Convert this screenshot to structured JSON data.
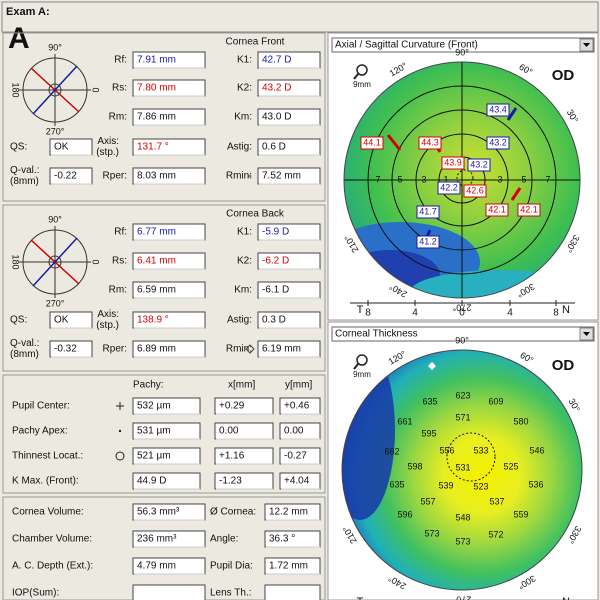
{
  "header": {
    "title": "Exam A:",
    "panel_letter": "A"
  },
  "cornea_front": {
    "title": "Cornea Front",
    "diagram": [
      "90°",
      "0",
      "180",
      "270°"
    ],
    "rows": [
      [
        {
          "label": [
            "Rf:"
          ],
          "value": "7.91 mm",
          "color": "blue"
        },
        {
          "label": [
            "K1:"
          ],
          "value": "42.7 D",
          "color": "blue"
        }
      ],
      [
        {
          "label": [
            "Rs:"
          ],
          "value": "7.80 mm",
          "color": "red"
        },
        {
          "label": [
            "K2:"
          ],
          "value": "43.2 D",
          "color": "red"
        }
      ],
      [
        {
          "label": [
            "Rm:"
          ],
          "value": "7.86 mm"
        },
        {
          "label": [
            "Km:"
          ],
          "value": "43.0 D"
        }
      ],
      [
        {
          "label": [
            "QS:"
          ],
          "value": "OK"
        },
        {
          "label": [
            "Axis:",
            "(stp.)"
          ],
          "value": "131.7 °",
          "color": "red"
        },
        {
          "label": [
            "Astig:"
          ],
          "value": "0.6 D"
        }
      ],
      [
        {
          "label": [
            "Q-val.:",
            "(8mm)"
          ],
          "value": "-0.22"
        },
        {
          "label": [
            "Rper:"
          ],
          "value": "8.03 mm"
        },
        {
          "label": [
            "Rmin:"
          ],
          "value": "7.52 mm"
        }
      ]
    ]
  },
  "cornea_back": {
    "title": "Cornea Back",
    "diagram": [
      "90°",
      "0",
      "180",
      "270°"
    ],
    "rows": [
      [
        {
          "label": [
            "Rf:"
          ],
          "value": "6.77 mm",
          "color": "blue"
        },
        {
          "label": [
            "K1:"
          ],
          "value": "-5.9 D",
          "color": "blue"
        }
      ],
      [
        {
          "label": [
            "Rs:"
          ],
          "value": "6.41 mm",
          "color": "red"
        },
        {
          "label": [
            "K2:"
          ],
          "value": "-6.2 D",
          "color": "red"
        }
      ],
      [
        {
          "label": [
            "Rm:"
          ],
          "value": "6.59 mm"
        },
        {
          "label": [
            "Km:"
          ],
          "value": "-6.1 D"
        }
      ],
      [
        {
          "label": [
            "QS:"
          ],
          "value": "OK"
        },
        {
          "label": [
            "Axis:",
            "(stp.)"
          ],
          "value": "138.9 °",
          "color": "red"
        },
        {
          "label": [
            "Astig:"
          ],
          "value": "0.3 D"
        }
      ],
      [
        {
          "label": [
            "Q-val.:",
            "(8mm)"
          ],
          "value": "-0.32"
        },
        {
          "label": [
            "Rper:"
          ],
          "value": "6.89 mm"
        },
        {
          "label": [
            "Rmin:"
          ],
          "value": "6.19 mm"
        }
      ]
    ]
  },
  "pachy": {
    "headers": [
      "Pachy:",
      "x[mm]",
      "y[mm]"
    ],
    "rows": [
      {
        "label": "Pupil Center:",
        "values": [
          "532 µm",
          "+0.29",
          "+0.46"
        ]
      },
      {
        "label": "Pachy Apex:",
        "values": [
          "531 µm",
          "0.00",
          "0.00"
        ]
      },
      {
        "label": "Thinnest Locat.:",
        "values": [
          "521 µm",
          "+1.16",
          "-0.27"
        ]
      },
      {
        "label": "K Max. (Front):",
        "values": [
          "44.9 D",
          "-1.23",
          "+4.04"
        ]
      }
    ]
  },
  "volumes": {
    "rows": [
      [
        {
          "label": "Cornea Volume:",
          "value": "56.3 mm³"
        },
        {
          "label": "Ø Cornea:",
          "value": "12.2 mm"
        }
      ],
      [
        {
          "label": "Chamber Volume:",
          "value": "236 mm³"
        },
        {
          "label": "Angle:",
          "value": "36.3 °"
        }
      ],
      [
        {
          "label": "A. C. Depth (Ext.):",
          "value": "4.79 mm"
        },
        {
          "label": "Pupil Dia:",
          "value": "1.72 mm"
        }
      ],
      [
        {
          "label": "IOP(Sum):"
        },
        {
          "label": "Lens Th.:"
        }
      ]
    ]
  },
  "curvature_map": {
    "selector": "Axial / Sagittal Curvature (Front)",
    "eye": "OD",
    "scale": "9mm",
    "angles": [
      "90°",
      "60°",
      "30°",
      "120°",
      "210°",
      "240°",
      "270°",
      "300°",
      "330°"
    ],
    "ring_labels": [
      7,
      5,
      3,
      1,
      3,
      5,
      7
    ],
    "values": [
      "43.4",
      "44.1",
      "44.3",
      "43.2",
      "43.9",
      "43.2",
      "42.2",
      "42.6",
      "41.7",
      "42.1",
      "42.1",
      "41.2"
    ],
    "value_colors": [
      "blue",
      "red",
      "red",
      "blue",
      "red",
      "blue",
      "blue",
      "red",
      "blue",
      "red",
      "red",
      "blue"
    ],
    "orientation": [
      "T",
      "N"
    ],
    "x_axis": [
      8,
      4,
      0,
      4,
      8
    ]
  },
  "thickness_map": {
    "selector": "Corneal Thickness",
    "eye": "OD",
    "scale": "9mm",
    "angles": [
      "90°",
      "60°",
      "30°",
      "120°",
      "210°",
      "240°",
      "270°",
      "300°",
      "330°"
    ],
    "values": [
      "623",
      "635",
      "609",
      "661",
      "595",
      "571",
      "580",
      "662",
      "556",
      "533",
      "546",
      "598",
      "531",
      "525",
      "536",
      "635",
      "539",
      "523",
      "557",
      "537",
      "596",
      "548",
      "559",
      "573",
      "573",
      "572"
    ],
    "orientation": [
      "T",
      "N"
    ]
  }
}
